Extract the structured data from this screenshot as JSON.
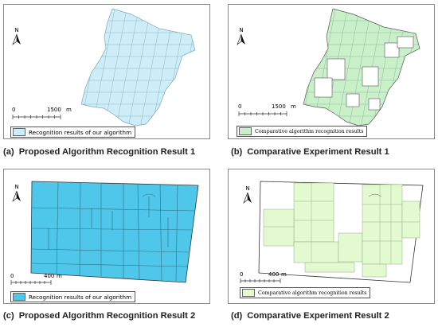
{
  "colors": {
    "proposed_fill": "#cdeef9",
    "comparative_fill": "#c9f0c9",
    "proposed_fill_dark": "#4fc7ea",
    "comparative_fill_light": "#e3f9cf",
    "grid_line": "#8fa0a8",
    "boundary": "#555555"
  },
  "north_arrow": {
    "letter": "N",
    "icon": "north-arrow-icon"
  },
  "panels": [
    {
      "id": "a",
      "scale": {
        "start": "0",
        "end": "1500",
        "unit": "m"
      },
      "legend": "Recognition results of our algorithm",
      "caption_tag": "(a)",
      "caption": "Proposed Algorithm Recognition Result 1"
    },
    {
      "id": "b",
      "scale": {
        "start": "0",
        "end": "1500",
        "unit": "m"
      },
      "legend": "Comparative algorithm recognition results",
      "caption_tag": "(b)",
      "caption": "Comparative Experiment Result 1"
    },
    {
      "id": "c",
      "scale": {
        "start": "0",
        "end": "400",
        "unit": "m"
      },
      "legend": "Recognition results of our algorithm",
      "caption_tag": "(c)",
      "caption": "Proposed Algorithm Recognition Result 2"
    },
    {
      "id": "d",
      "scale": {
        "start": "0",
        "end": "400",
        "unit": "m"
      },
      "legend": "Comparative algorithm recognition results",
      "caption_tag": "(d)",
      "caption": "Comparative Experiment Result 2"
    }
  ]
}
